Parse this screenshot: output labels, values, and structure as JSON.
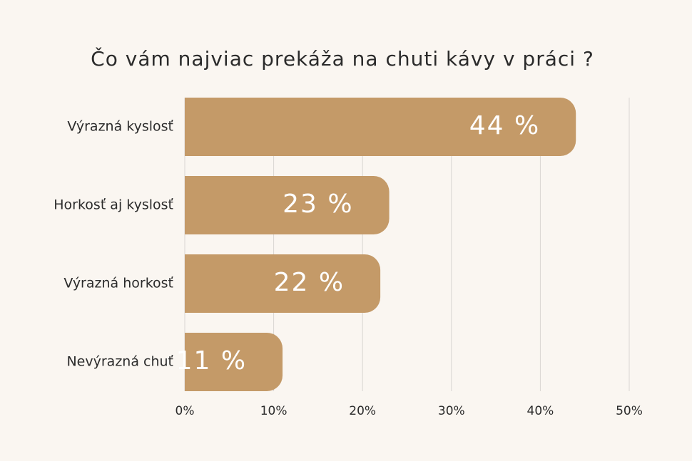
{
  "chart_data": {
    "type": "bar",
    "orientation": "horizontal",
    "title": "Čo vám najviac prekáža na chuti kávy v práci ?",
    "categories": [
      "Výrazná kyslosť",
      "Horkosť aj kyslosť",
      "Výrazná horkosť",
      "Nevýrazná chuť"
    ],
    "values": [
      44,
      23,
      22,
      11
    ],
    "value_labels": [
      "44 %",
      "23 %",
      "22 %",
      "11 %"
    ],
    "color": "#c49a68",
    "xlim": [
      0,
      50
    ],
    "xticks": [
      {
        "value": 0,
        "label": "0%"
      },
      {
        "value": 10,
        "label": "10%"
      },
      {
        "value": 20,
        "label": "20%"
      },
      {
        "value": 30,
        "label": "30%"
      },
      {
        "value": 40,
        "label": "40%"
      },
      {
        "value": 50,
        "label": "50%"
      }
    ],
    "grid": true
  }
}
